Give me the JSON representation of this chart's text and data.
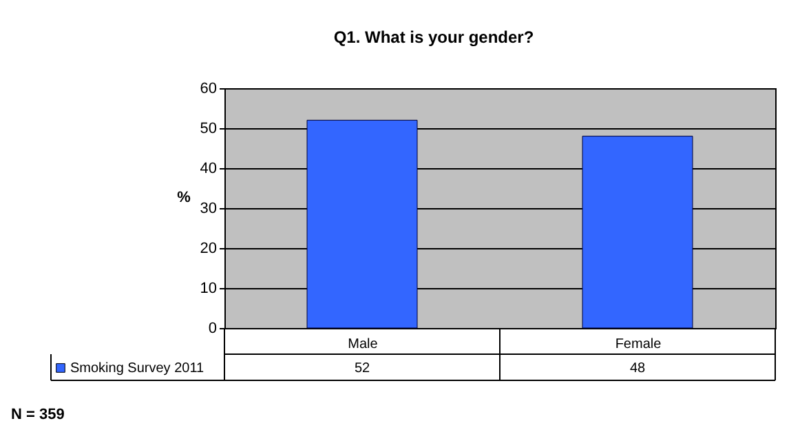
{
  "chart_data": {
    "type": "bar",
    "title": "Q1. What is your gender?",
    "ylabel": "%",
    "categories": [
      "Male",
      "Female"
    ],
    "series": [
      {
        "name": "Smoking Survey 2011",
        "color": "#3366ff",
        "values": [
          52,
          48
        ]
      }
    ],
    "ylim": [
      0,
      60
    ],
    "yticks": [
      0,
      10,
      20,
      30,
      40,
      50,
      60
    ],
    "grid": "y",
    "legend": "bottom",
    "data_labels": true,
    "annotations": [
      "N = 359"
    ]
  }
}
